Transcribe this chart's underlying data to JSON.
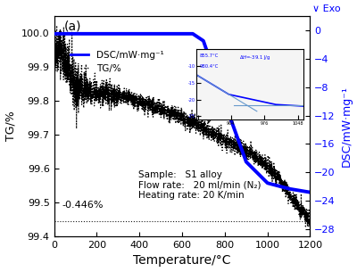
{
  "title_label": "(a)",
  "xlabel": "Temperature/°C",
  "ylabel_left": "TG/%",
  "ylabel_right": "DSC/mW·mg⁻¹",
  "right_top_label": "∨ Exo",
  "xlim": [
    0,
    1200
  ],
  "ylim_left": [
    99.4,
    100.05
  ],
  "ylim_right": [
    -29,
    2
  ],
  "yticks_left": [
    99.4,
    99.5,
    99.6,
    99.7,
    99.8,
    99.9,
    100.0
  ],
  "yticks_right": [
    0,
    -4,
    -8,
    -12,
    -16,
    -20,
    -24,
    -28
  ],
  "xticks": [
    0,
    200,
    400,
    600,
    800,
    1000,
    1200
  ],
  "legend_dsc": "DSC/mW·mg⁻¹",
  "legend_tg": "TG/%",
  "annotation_text": "Sample:   S1 alloy\nFlow rate:   20 ml/min (N₂)\nHeating rate: 20 K/min",
  "annotation_percent": "-0.446%",
  "dsc_color": "#0000ff",
  "tg_color": "#000000",
  "background_color": "#ffffff",
  "inset_color": "#6699cc"
}
